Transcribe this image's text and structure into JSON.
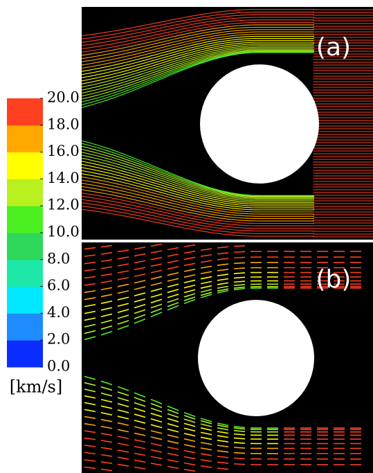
{
  "chart_data": {
    "type": "colorbar",
    "panels": [
      "(a)",
      "(b)"
    ],
    "colorbar": {
      "label": "[km/s]",
      "lim": [
        0,
        20
      ],
      "ticks": [
        {
          "value": 0,
          "label": "0.0"
        },
        {
          "value": 2,
          "label": "2.0"
        },
        {
          "value": 4,
          "label": "4.0"
        },
        {
          "value": 6,
          "label": "6.0"
        },
        {
          "value": 8,
          "label": "8.0"
        },
        {
          "value": 10,
          "label": "10.0"
        },
        {
          "value": 12,
          "label": "12.0"
        },
        {
          "value": 14,
          "label": "14.0"
        },
        {
          "value": 16,
          "label": "16.0"
        },
        {
          "value": 18,
          "label": "18.0"
        },
        {
          "value": 20,
          "label": "20.0"
        }
      ],
      "colors": [
        "#0a2cff",
        "#1e8cff",
        "#00e8ff",
        "#1ee8a8",
        "#2ed85a",
        "#4cf020",
        "#b8f020",
        "#ffff00",
        "#ffa800",
        "#ff4020"
      ]
    }
  }
}
